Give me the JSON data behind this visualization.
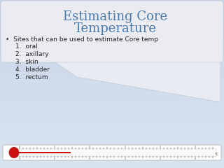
{
  "title_line1": "Estimating Core",
  "title_line2": "Temperature",
  "title_color": "#4a7aab",
  "bullet_text": "Sites that can be used to estimate Core temp",
  "numbered_items": [
    "oral",
    "axillary",
    "skin",
    "bladder",
    "rectum"
  ],
  "bg_color": "#c8d4e8",
  "bg_color_bottom": "#d8e4f0",
  "text_color": "#222222",
  "title_fontsize": 13,
  "body_fontsize": 6.5,
  "white_card_color": "#e8ecf0"
}
